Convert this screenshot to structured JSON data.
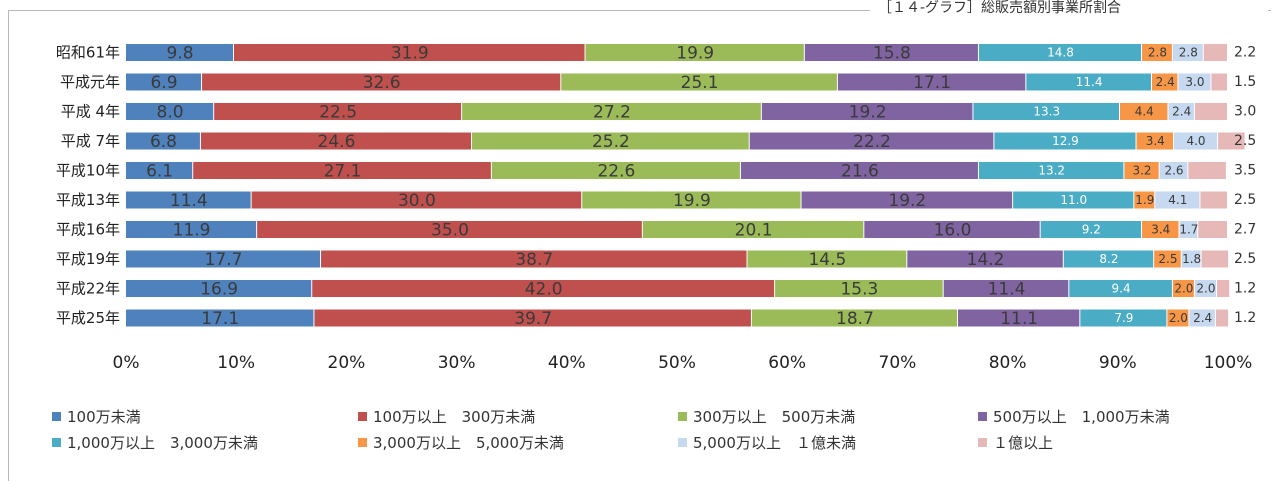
{
  "header": {
    "title": "［１４-グラフ］総販売額別事業所割合"
  },
  "chart_data": {
    "type": "bar",
    "orientation": "horizontal",
    "stacked": true,
    "categories": [
      "昭和61年",
      "平成元年",
      "平成 4年",
      "平成 7年",
      "平成10年",
      "平成13年",
      "平成16年",
      "平成19年",
      "平成22年",
      "平成25年"
    ],
    "series": [
      {
        "name": "100万未満",
        "color": "#4f81bd",
        "values": [
          9.8,
          6.9,
          8.0,
          6.8,
          6.1,
          11.4,
          11.9,
          17.7,
          16.9,
          17.1
        ]
      },
      {
        "name": "100万以上　300万未満",
        "color": "#c0504d",
        "values": [
          31.9,
          32.6,
          22.5,
          24.6,
          27.1,
          30.0,
          35.0,
          38.7,
          42.0,
          39.7
        ]
      },
      {
        "name": "300万以上　500万未満",
        "color": "#9bbb59",
        "values": [
          19.9,
          25.1,
          27.2,
          25.2,
          22.6,
          19.9,
          20.1,
          14.5,
          15.3,
          18.7
        ]
      },
      {
        "name": "500万以上　1,000万未満",
        "color": "#8064a2",
        "values": [
          15.8,
          17.1,
          19.2,
          22.2,
          21.6,
          19.2,
          16.0,
          14.2,
          11.4,
          11.1
        ]
      },
      {
        "name": "1,000万以上　3,000万未満",
        "color": "#4bacc6",
        "values": [
          14.8,
          11.4,
          13.3,
          12.9,
          13.2,
          11.0,
          9.2,
          8.2,
          9.4,
          7.9
        ]
      },
      {
        "name": "3,000万以上　5,000万未満",
        "color": "#f79646",
        "values": [
          2.8,
          2.4,
          4.4,
          3.4,
          3.2,
          1.9,
          3.4,
          2.5,
          2.0,
          2.0
        ]
      },
      {
        "name": "5,000万以上　１億未満",
        "color": "#c6d9f1",
        "values": [
          2.8,
          3.0,
          2.4,
          4.0,
          2.6,
          4.1,
          1.7,
          1.8,
          2.0,
          2.4
        ]
      },
      {
        "name": "１億以上",
        "color": "#e6b9b8",
        "values": [
          2.2,
          1.5,
          3.0,
          2.5,
          3.5,
          2.5,
          2.7,
          2.5,
          1.2,
          1.2
        ]
      }
    ],
    "x_ticks": [
      "0%",
      "10%",
      "20%",
      "30%",
      "40%",
      "50%",
      "60%",
      "70%",
      "80%",
      "90%",
      "100%"
    ],
    "xlim": [
      0,
      100
    ],
    "grid": false,
    "legend_position": "bottom"
  }
}
